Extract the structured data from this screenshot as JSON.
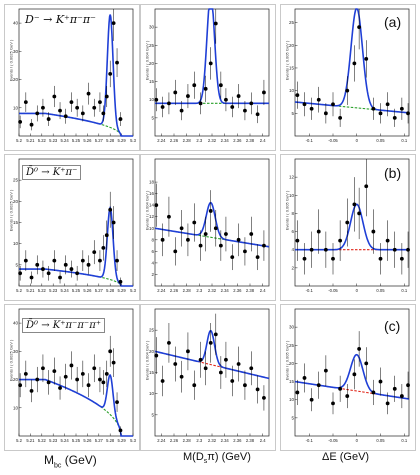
{
  "row_labels": [
    "(a)",
    "(b)",
    "(c)"
  ],
  "process_labels": [
    "D⁻ → K⁺π⁻π⁻",
    "D̄⁰ → K⁺π⁻",
    "D̄⁰ → K⁺π⁻π⁻π⁺"
  ],
  "y_labels": {
    "mbc": "Events / ( 0.0025 GeV )",
    "mds": "Events / ( 0.004 GeV )",
    "de": "Events / ( 0.005 GeV )"
  },
  "x_titles": {
    "mbc_main": "M",
    "mbc_sub": "bc",
    "mbc_unit": " (GeV)",
    "mds": "M(D",
    "mds_sub": "s",
    "mds_rest": "π) (GeV)",
    "de": "ΔE (GeV)"
  },
  "colors": {
    "data": "#000000",
    "fit": "#1f3fd6",
    "bkg_green": "#2aa02a",
    "bkg_red": "#e0281c"
  },
  "chart_data": [
    {
      "type": "scatter",
      "row": "(a)",
      "variable": "Mbc",
      "xlim": [
        5.2,
        5.3
      ],
      "ylim": [
        0,
        45
      ],
      "yticks": [
        10,
        20,
        30,
        40
      ],
      "xticks": [
        "5.2",
        "5.21",
        "5.22",
        "5.23",
        "5.24",
        "5.25",
        "5.26",
        "5.27",
        "5.28",
        "5.29",
        "5.3"
      ],
      "x": [
        5.201,
        5.206,
        5.211,
        5.216,
        5.221,
        5.226,
        5.231,
        5.236,
        5.241,
        5.246,
        5.251,
        5.256,
        5.261,
        5.266,
        5.271,
        5.274,
        5.277,
        5.28,
        5.283,
        5.286,
        5.289
      ],
      "y": [
        5,
        12,
        4,
        8,
        10,
        6,
        14,
        9,
        7,
        12,
        10,
        8,
        15,
        10,
        12,
        8,
        14,
        22,
        40,
        26,
        6
      ],
      "peak": 5.28,
      "peak_height": 40,
      "sigma": 0.0025,
      "bkg_type": "argus",
      "bkg_level": 8,
      "bkg_color": "#2aa02a"
    },
    {
      "type": "scatter",
      "row": "(a)",
      "variable": "M(Dsπ)",
      "xlim": [
        2.23,
        2.41
      ],
      "ylim": [
        0,
        35
      ],
      "yticks": [
        5,
        10,
        15,
        20,
        25,
        30
      ],
      "xticks": [
        "2.24",
        "2.26",
        "2.28",
        "2.3",
        "2.32",
        "2.34",
        "2.36",
        "2.38",
        "2.4"
      ],
      "x": [
        2.232,
        2.242,
        2.252,
        2.262,
        2.272,
        2.282,
        2.292,
        2.302,
        2.31,
        2.318,
        2.326,
        2.334,
        2.342,
        2.352,
        2.362,
        2.372,
        2.382,
        2.392,
        2.402
      ],
      "y": [
        10,
        8,
        9,
        12,
        7,
        11,
        14,
        9,
        13,
        20,
        31,
        14,
        10,
        8,
        11,
        7,
        9,
        6,
        12
      ],
      "peak": 2.318,
      "peak_height": 30,
      "sigma": 0.006,
      "bkg_type": "flat",
      "bkg_level": 9,
      "bkg_color": "#2aa02a"
    },
    {
      "type": "scatter",
      "row": "(a)",
      "variable": "ΔE",
      "xlim": [
        -0.13,
        0.11
      ],
      "ylim": [
        0,
        28
      ],
      "yticks": [
        5,
        10,
        15,
        20,
        25
      ],
      "xticks": [
        "-0.1",
        "-0.05",
        "0",
        "0.05",
        "0.1"
      ],
      "x": [
        -0.125,
        -0.11,
        -0.095,
        -0.08,
        -0.065,
        -0.05,
        -0.035,
        -0.02,
        -0.005,
        0.005,
        0.02,
        0.035,
        0.05,
        0.065,
        0.08,
        0.095,
        0.108
      ],
      "y": [
        9,
        7,
        6,
        8,
        5,
        7,
        4,
        10,
        16,
        24,
        17,
        6,
        5,
        7,
        4,
        6,
        5
      ],
      "peak": 0.0,
      "peak_height": 22,
      "sigma": 0.012,
      "bkg_type": "linear",
      "bkg_level": 6,
      "bkg_color": "#2aa02a"
    },
    {
      "type": "scatter",
      "row": "(b)",
      "variable": "Mbc",
      "xlim": [
        5.2,
        5.3
      ],
      "ylim": [
        0,
        30
      ],
      "yticks": [
        5,
        10,
        15,
        20,
        25
      ],
      "xticks": [
        "5.2",
        "5.21",
        "5.22",
        "5.23",
        "5.24",
        "5.25",
        "5.26",
        "5.27",
        "5.28",
        "5.29",
        "5.3"
      ],
      "x": [
        5.201,
        5.206,
        5.211,
        5.216,
        5.221,
        5.226,
        5.231,
        5.236,
        5.241,
        5.246,
        5.251,
        5.256,
        5.261,
        5.266,
        5.271,
        5.274,
        5.277,
        5.28,
        5.283,
        5.286,
        5.289
      ],
      "y": [
        3,
        6,
        2,
        5,
        4,
        3,
        6,
        2,
        5,
        4,
        3,
        6,
        5,
        8,
        6,
        9,
        12,
        18,
        15,
        6,
        1
      ],
      "peak": 5.28,
      "peak_height": 17,
      "sigma": 0.0025,
      "bkg_type": "argus",
      "bkg_level": 4,
      "bkg_color": "#2aa02a"
    },
    {
      "type": "scatter",
      "row": "(b)",
      "variable": "M(Dsπ)",
      "xlim": [
        2.23,
        2.41
      ],
      "ylim": [
        0,
        22
      ],
      "yticks": [
        2,
        4,
        6,
        8,
        10,
        12,
        14,
        16,
        18
      ],
      "xticks": [
        "2.24",
        "2.26",
        "2.28",
        "2.3",
        "2.32",
        "2.34",
        "2.36",
        "2.38",
        "2.4"
      ],
      "x": [
        2.232,
        2.242,
        2.252,
        2.262,
        2.272,
        2.282,
        2.292,
        2.302,
        2.31,
        2.318,
        2.326,
        2.334,
        2.342,
        2.352,
        2.362,
        2.372,
        2.382,
        2.392,
        2.402
      ],
      "y": [
        14,
        8,
        12,
        6,
        10,
        8,
        11,
        7,
        9,
        13,
        10,
        7,
        9,
        5,
        8,
        6,
        9,
        5,
        7
      ],
      "peak": 2.318,
      "peak_height": 6,
      "sigma": 0.007,
      "bkg_type": "linear",
      "bkg_level": 8,
      "bkg_color": "#2aa02a"
    },
    {
      "type": "scatter",
      "row": "(b)",
      "variable": "ΔE",
      "xlim": [
        -0.13,
        0.11
      ],
      "ylim": [
        0,
        14
      ],
      "yticks": [
        2,
        4,
        6,
        8,
        10,
        12
      ],
      "xticks": [
        "-0.1",
        "-0.05",
        "0",
        "0.05",
        "0.1"
      ],
      "x": [
        -0.125,
        -0.11,
        -0.095,
        -0.08,
        -0.065,
        -0.05,
        -0.035,
        -0.02,
        -0.005,
        0.005,
        0.02,
        0.035,
        0.05,
        0.065,
        0.08,
        0.095,
        0.108
      ],
      "y": [
        5,
        3,
        4,
        6,
        4,
        3,
        5,
        7,
        9,
        8,
        11,
        6,
        3,
        5,
        4,
        3,
        4
      ],
      "peak": 0.0,
      "peak_height": 5,
      "sigma": 0.013,
      "bkg_type": "flat",
      "bkg_level": 4,
      "bkg_color": "#e0281c"
    },
    {
      "type": "scatter",
      "row": "(c)",
      "variable": "Mbc",
      "xlim": [
        5.2,
        5.3
      ],
      "ylim": [
        0,
        45
      ],
      "yticks": [
        10,
        20,
        30,
        40
      ],
      "xticks": [
        "5.2",
        "5.21",
        "5.22",
        "5.23",
        "5.24",
        "5.25",
        "5.26",
        "5.27",
        "5.28",
        "5.29",
        "5.3"
      ],
      "x": [
        5.201,
        5.206,
        5.211,
        5.216,
        5.221,
        5.226,
        5.231,
        5.236,
        5.241,
        5.246,
        5.251,
        5.256,
        5.261,
        5.266,
        5.271,
        5.274,
        5.277,
        5.28,
        5.283,
        5.286,
        5.289
      ],
      "y": [
        18,
        22,
        16,
        20,
        24,
        19,
        23,
        17,
        21,
        25,
        20,
        22,
        18,
        24,
        20,
        19,
        22,
        30,
        26,
        12,
        2
      ],
      "peak": 5.28,
      "peak_height": 14,
      "sigma": 0.0025,
      "bkg_type": "argus",
      "bkg_level": 20,
      "bkg_color": "#2aa02a"
    },
    {
      "type": "scatter",
      "row": "(c)",
      "variable": "M(Dsπ)",
      "xlim": [
        2.23,
        2.41
      ],
      "ylim": [
        0,
        30
      ],
      "yticks": [
        5,
        10,
        15,
        20,
        25
      ],
      "xticks": [
        "2.24",
        "2.26",
        "2.28",
        "2.3",
        "2.32",
        "2.34",
        "2.36",
        "2.38",
        "2.4"
      ],
      "x": [
        2.232,
        2.242,
        2.252,
        2.262,
        2.272,
        2.282,
        2.292,
        2.302,
        2.31,
        2.318,
        2.326,
        2.334,
        2.342,
        2.352,
        2.362,
        2.372,
        2.382,
        2.392,
        2.402
      ],
      "y": [
        19,
        13,
        22,
        17,
        14,
        20,
        12,
        18,
        16,
        22,
        24,
        15,
        18,
        13,
        17,
        12,
        16,
        11,
        9
      ],
      "peak": 2.318,
      "peak_height": 8,
      "sigma": 0.006,
      "bkg_type": "linear",
      "bkg_level": 16,
      "bkg_color": "#e0281c"
    },
    {
      "type": "scatter",
      "row": "(c)",
      "variable": "ΔE",
      "xlim": [
        -0.13,
        0.11
      ],
      "ylim": [
        0,
        35
      ],
      "yticks": [
        5,
        10,
        15,
        20,
        25,
        30
      ],
      "xticks": [
        "-0.1",
        "-0.05",
        "0",
        "0.05",
        "0.1"
      ],
      "x": [
        -0.125,
        -0.11,
        -0.095,
        -0.08,
        -0.065,
        -0.05,
        -0.035,
        -0.02,
        -0.005,
        0.005,
        0.02,
        0.035,
        0.05,
        0.065,
        0.08,
        0.095,
        0.108
      ],
      "y": [
        12,
        16,
        10,
        14,
        18,
        9,
        13,
        11,
        17,
        24,
        20,
        12,
        15,
        9,
        13,
        11,
        14
      ],
      "peak": 0.0,
      "peak_height": 10,
      "sigma": 0.013,
      "bkg_type": "linear",
      "bkg_level": 12,
      "bkg_color": "#e0281c"
    }
  ]
}
